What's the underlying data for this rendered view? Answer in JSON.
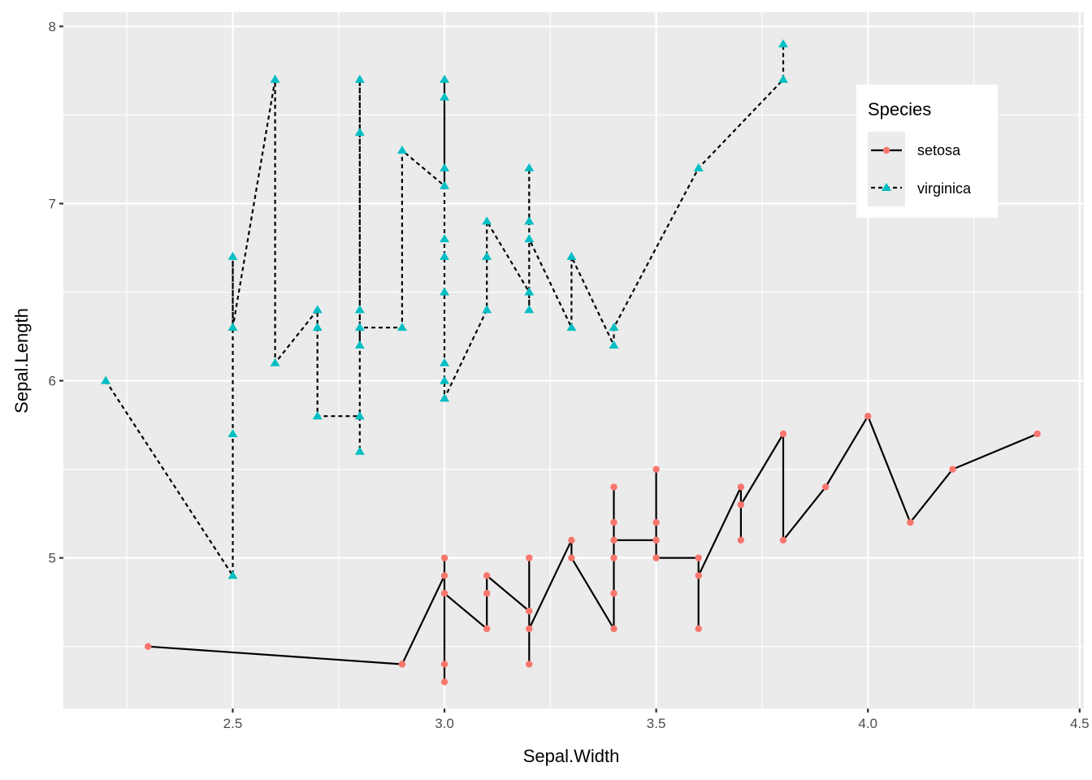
{
  "chart_data": {
    "type": "line",
    "title": "",
    "xlabel": "Sepal.Width",
    "ylabel": "Sepal.Length",
    "xlim": [
      2.1,
      4.51
    ],
    "ylim": [
      4.15,
      8.08
    ],
    "x_ticks": [
      2.5,
      3.0,
      3.5,
      4.0,
      4.5
    ],
    "x_tick_labels": [
      "2.5",
      "3.0",
      "3.5",
      "4.0",
      "4.5"
    ],
    "y_ticks": [
      5,
      6,
      7,
      8
    ],
    "y_tick_labels": [
      "5",
      "6",
      "7",
      "8"
    ],
    "grid": true,
    "legend": {
      "title": "Species",
      "position": "top-right"
    },
    "series": [
      {
        "name": "setosa",
        "color": "#F8766D",
        "marker": "circle",
        "linestyle": "solid",
        "points": [
          [
            2.3,
            4.5
          ],
          [
            2.9,
            4.4
          ],
          [
            3.0,
            4.9
          ],
          [
            3.0,
            5.0
          ],
          [
            3.0,
            4.3
          ],
          [
            3.0,
            4.4
          ],
          [
            3.0,
            4.8
          ],
          [
            3.1,
            4.6
          ],
          [
            3.1,
            4.8
          ],
          [
            3.1,
            4.9
          ],
          [
            3.2,
            4.7
          ],
          [
            3.2,
            5.0
          ],
          [
            3.2,
            4.4
          ],
          [
            3.2,
            4.6
          ],
          [
            3.3,
            5.1
          ],
          [
            3.3,
            5.0
          ],
          [
            3.4,
            4.6
          ],
          [
            3.4,
            5.4
          ],
          [
            3.4,
            4.8
          ],
          [
            3.4,
            5.0
          ],
          [
            3.4,
            5.2
          ],
          [
            3.4,
            5.1
          ],
          [
            3.5,
            5.1
          ],
          [
            3.5,
            5.5
          ],
          [
            3.5,
            5.2
          ],
          [
            3.5,
            5.0
          ],
          [
            3.6,
            5.0
          ],
          [
            3.6,
            4.6
          ],
          [
            3.6,
            4.9
          ],
          [
            3.7,
            5.4
          ],
          [
            3.7,
            5.1
          ],
          [
            3.7,
            5.3
          ],
          [
            3.8,
            5.7
          ],
          [
            3.8,
            5.1
          ],
          [
            3.9,
            5.4
          ],
          [
            4.0,
            5.8
          ],
          [
            4.1,
            5.2
          ],
          [
            4.2,
            5.5
          ],
          [
            4.4,
            5.7
          ]
        ]
      },
      {
        "name": "virginica",
        "color": "#00BFC4",
        "marker": "triangle",
        "linestyle": "dashed",
        "points": [
          [
            2.2,
            6.0
          ],
          [
            2.5,
            4.9
          ],
          [
            2.5,
            5.7
          ],
          [
            2.5,
            6.7
          ],
          [
            2.5,
            6.3
          ],
          [
            2.6,
            7.7
          ],
          [
            2.6,
            6.1
          ],
          [
            2.7,
            6.4
          ],
          [
            2.7,
            6.3
          ],
          [
            2.7,
            5.8
          ],
          [
            2.8,
            5.8
          ],
          [
            2.8,
            5.6
          ],
          [
            2.8,
            7.7
          ],
          [
            2.8,
            7.4
          ],
          [
            2.8,
            6.4
          ],
          [
            2.8,
            6.2
          ],
          [
            2.8,
            6.3
          ],
          [
            2.9,
            6.3
          ],
          [
            2.9,
            7.3
          ],
          [
            3.0,
            7.1
          ],
          [
            3.0,
            7.7
          ],
          [
            3.0,
            7.6
          ],
          [
            3.0,
            7.2
          ],
          [
            3.0,
            6.8
          ],
          [
            3.0,
            6.7
          ],
          [
            3.0,
            6.5
          ],
          [
            3.0,
            6.1
          ],
          [
            3.0,
            6.0
          ],
          [
            3.0,
            5.9
          ],
          [
            3.1,
            6.4
          ],
          [
            3.1,
            6.7
          ],
          [
            3.1,
            6.9
          ],
          [
            3.2,
            6.5
          ],
          [
            3.2,
            6.4
          ],
          [
            3.2,
            7.2
          ],
          [
            3.2,
            6.9
          ],
          [
            3.2,
            6.8
          ],
          [
            3.3,
            6.3
          ],
          [
            3.3,
            6.7
          ],
          [
            3.4,
            6.2
          ],
          [
            3.4,
            6.3
          ],
          [
            3.6,
            7.2
          ],
          [
            3.8,
            7.7
          ],
          [
            3.8,
            7.9
          ]
        ]
      }
    ]
  }
}
